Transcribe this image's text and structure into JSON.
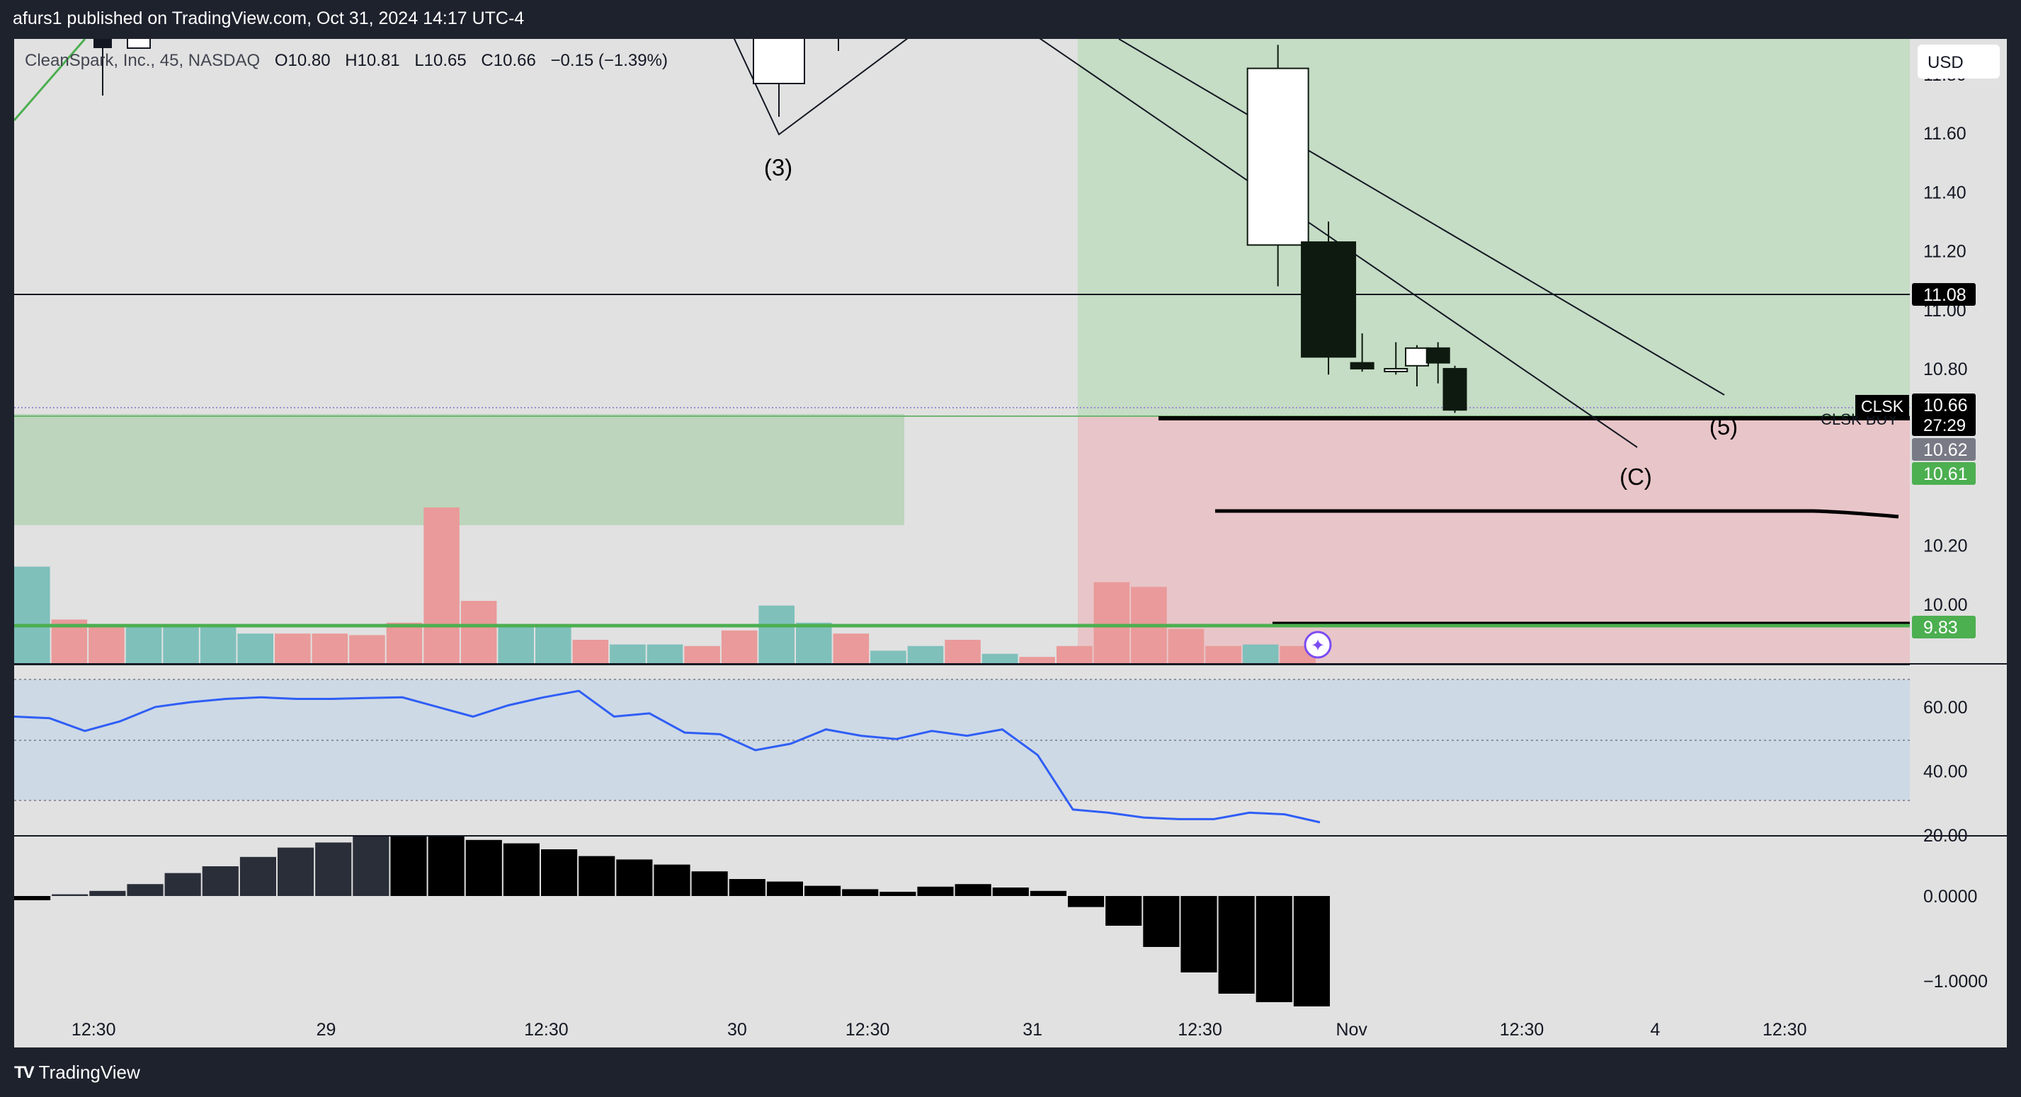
{
  "header": {
    "published": "afurs1 published on TradingView.com, Oct 31, 2024 14:17 UTC-4"
  },
  "footer": {
    "brand": "TradingView",
    "logo_mark": "TV"
  },
  "currency": "USD",
  "legend": {
    "symbol": "CleanSpark, Inc., 45, NASDAQ",
    "o_label": "O",
    "o": "10.80",
    "h_label": "H",
    "h": "10.81",
    "l_label": "L",
    "l": "10.65",
    "c_label": "C",
    "c": "10.66",
    "change": "−0.15 (−1.39%)"
  },
  "wave_labels": {
    "w3": "(3)",
    "w5": "(5)",
    "wc": "(C)"
  },
  "price_tags": {
    "level_1108": "11.08",
    "symbol": "CLSK",
    "last": "10.66",
    "countdown": "27:29",
    "p1062": "10.62",
    "p1061": "10.61",
    "p983": "9.83",
    "line_label": "CLSK BUY"
  },
  "colors": {
    "background": "#1e222d",
    "plot": "#e1e1e1",
    "candle_down": "#0e1a10",
    "candle_up": "#ffffff",
    "profit_zone": "#c5dcc5",
    "loss_zone": "#e8c5c8",
    "volume_up": "#7fc0bb",
    "volume_down": "#ea9a9a",
    "rsi_line": "#2f5ef5",
    "rsi_band": "#cdd9e5",
    "level_green": "#4caf50",
    "tag_gray": "#787b86"
  },
  "chart_data": [
    {
      "type": "candlestick",
      "title": "CleanSpark, Inc., 45, NASDAQ",
      "x_tick_labels": [
        "12:30",
        "29",
        "12:30",
        "30",
        "12:30",
        "31",
        "12:30",
        "Nov",
        "12:30",
        "4",
        "12:30"
      ],
      "y_tick_labels": [
        "10.00",
        "10.20",
        "10.80",
        "11.00",
        "11.20",
        "11.40",
        "11.60",
        "11.80"
      ],
      "ylim": [
        9.8,
        11.92
      ],
      "candles": [
        {
          "x": 30,
          "open": 11.22,
          "high": 11.9,
          "low": 11.08,
          "close": 11.82
        },
        {
          "x": 31.2,
          "open": 11.23,
          "high": 11.3,
          "low": 10.78,
          "close": 10.84
        },
        {
          "x": 32,
          "open": 10.82,
          "high": 10.92,
          "low": 10.79,
          "close": 10.8
        },
        {
          "x": 32.8,
          "open": 10.8,
          "high": 10.89,
          "low": 10.78,
          "close": 10.8
        },
        {
          "x": 33.3,
          "open": 10.81,
          "high": 10.88,
          "low": 10.74,
          "close": 10.87
        },
        {
          "x": 33.8,
          "open": 10.87,
          "high": 10.89,
          "low": 10.75,
          "close": 10.82
        },
        {
          "x": 34.2,
          "open": 10.8,
          "high": 10.81,
          "low": 10.65,
          "close": 10.66
        }
      ],
      "horizontal_levels": [
        11.08,
        10.62,
        10.25,
        9.83
      ],
      "annotations": [
        "(3)",
        "(5)",
        "(C)"
      ]
    },
    {
      "type": "bar",
      "title": "Volume",
      "values": [
        0.62,
        0.28,
        0.23,
        0.25,
        0.25,
        0.25,
        0.19,
        0.19,
        0.19,
        0.18,
        0.26,
        1.0,
        0.4,
        0.25,
        0.24,
        0.15,
        0.12,
        0.12,
        0.11,
        0.21,
        0.37,
        0.26,
        0.19,
        0.08,
        0.11,
        0.15,
        0.06,
        0.04,
        0.11,
        0.52,
        0.49,
        0.22,
        0.11,
        0.12,
        0.11
      ],
      "up": [
        true,
        false,
        false,
        true,
        true,
        true,
        true,
        false,
        false,
        false,
        false,
        false,
        false,
        true,
        true,
        false,
        true,
        true,
        false,
        false,
        true,
        true,
        false,
        true,
        true,
        false,
        true,
        false,
        false,
        false,
        false,
        false,
        false,
        true,
        false
      ]
    },
    {
      "type": "line",
      "title": "RSI",
      "y_tick_labels": [
        "20.00",
        "40.00",
        "60.00"
      ],
      "ylim": [
        20,
        73
      ],
      "bands": [
        30,
        50,
        70
      ],
      "values": [
        57,
        56.5,
        52.5,
        55.5,
        60,
        61.5,
        62.5,
        63,
        62.5,
        62.5,
        62.8,
        63,
        60,
        57,
        60.5,
        63,
        65,
        57,
        58,
        52,
        51.5,
        46.5,
        48.5,
        53,
        51,
        50,
        52.5,
        51,
        53,
        45,
        28,
        27,
        25.5,
        25,
        25,
        27,
        26.5,
        24
      ]
    },
    {
      "type": "bar",
      "title": "MACD histogram",
      "y_tick_labels": [
        "0.0000",
        "−1.0000"
      ],
      "ylim": [
        -1.3,
        0.7
      ],
      "values": [
        -0.05,
        0.02,
        0.06,
        0.14,
        0.27,
        0.35,
        0.46,
        0.57,
        0.63,
        0.75,
        0.75,
        0.71,
        0.66,
        0.62,
        0.55,
        0.47,
        0.43,
        0.37,
        0.29,
        0.2,
        0.17,
        0.12,
        0.08,
        0.05,
        0.11,
        0.14,
        0.1,
        0.06,
        -0.13,
        -0.35,
        -0.6,
        -0.9,
        -1.15,
        -1.25,
        -1.3
      ]
    }
  ]
}
